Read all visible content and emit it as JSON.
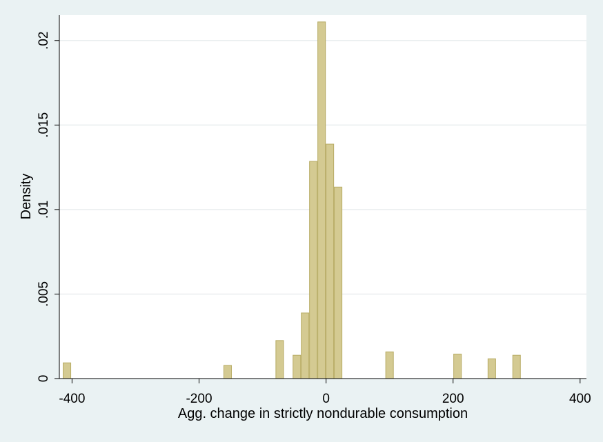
{
  "chart_data": {
    "type": "bar",
    "title": "",
    "xlabel": "Agg. change in strictly nondurable consumption",
    "ylabel": "Density",
    "xlim": [
      -420,
      410
    ],
    "ylim": [
      0,
      0.0215
    ],
    "x_ticks": [
      -400,
      -200,
      0,
      200,
      400
    ],
    "x_tick_labels": [
      "-400",
      "-200",
      "0",
      "200",
      "400"
    ],
    "y_ticks": [
      0,
      0.005,
      0.01,
      0.015,
      0.02
    ],
    "y_tick_labels": [
      "0",
      ".005",
      ".01",
      ".015",
      ".02"
    ],
    "grid": true,
    "bar_width": 12,
    "bars": [
      {
        "x": -408,
        "value": 0.00093
      },
      {
        "x": -155,
        "value": 0.00078
      },
      {
        "x": -73,
        "value": 0.00225
      },
      {
        "x": -46,
        "value": 0.00138
      },
      {
        "x": -33,
        "value": 0.00388
      },
      {
        "x": -20,
        "value": 0.01285
      },
      {
        "x": -7,
        "value": 0.0211
      },
      {
        "x": 6,
        "value": 0.01387
      },
      {
        "x": 19,
        "value": 0.01133
      },
      {
        "x": 100,
        "value": 0.00158
      },
      {
        "x": 207,
        "value": 0.00145
      },
      {
        "x": 261,
        "value": 0.00117
      },
      {
        "x": 300,
        "value": 0.00138
      }
    ],
    "colors": {
      "bar_fill": "#d4ca92",
      "bar_stroke": "#b7ab63",
      "grid": "#e9eeef",
      "plot_bg": "#ffffff",
      "outer_bg": "#eaf2f3"
    }
  }
}
